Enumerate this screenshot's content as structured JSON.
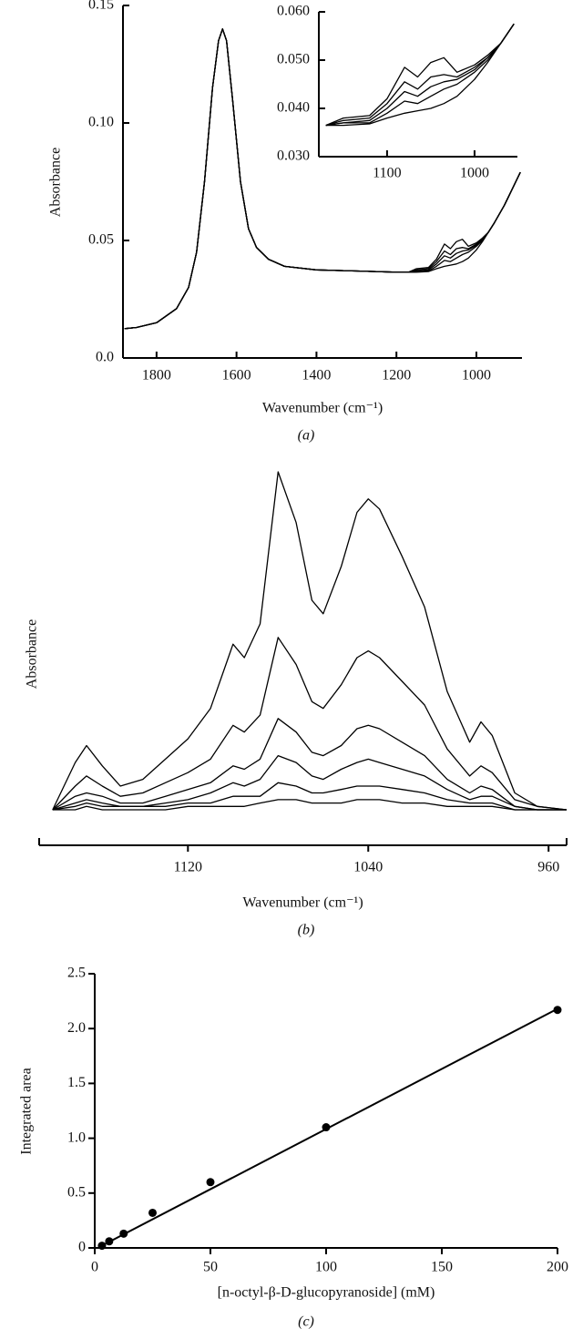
{
  "chart_data": [
    {
      "type": "line",
      "color": "#000000",
      "y_label": "Absorbance",
      "x_label": "Wavenumber (cm⁻¹)",
      "caption": "(a)",
      "xlim": [
        1884,
        886
      ],
      "xticks": [
        1800,
        1600,
        1400,
        1200,
        1000
      ],
      "ylim": [
        0,
        0.15
      ],
      "yticks": [
        {
          "value": 0,
          "label": "0.0"
        },
        0.05,
        {
          "value": 0.1,
          "label": "0.10"
        },
        0.15
      ],
      "x": [
        1880,
        1850,
        1800,
        1750,
        1720,
        1700,
        1680,
        1660,
        1645,
        1635,
        1625,
        1610,
        1590,
        1570,
        1550,
        1520,
        1480,
        1400,
        1300,
        1200,
        1170,
        1150,
        1120,
        1100,
        1080,
        1065,
        1050,
        1035,
        1020,
        1000,
        985,
        970,
        955,
        930,
        890
      ],
      "series": [
        {
          "values": [
            0.0125,
            0.013,
            0.015,
            0.021,
            0.03,
            0.045,
            0.075,
            0.115,
            0.135,
            0.14,
            0.135,
            0.11,
            0.075,
            0.055,
            0.047,
            0.042,
            0.039,
            0.0375,
            0.037,
            0.0365,
            0.0365,
            0.038,
            0.0385,
            0.042,
            0.0485,
            0.0465,
            0.0495,
            0.0505,
            0.0475,
            0.049,
            0.051,
            0.0535,
            0.0575,
            0.065,
            0.079
          ]
        },
        {
          "values": [
            0.0125,
            0.013,
            0.015,
            0.021,
            0.03,
            0.045,
            0.075,
            0.115,
            0.135,
            0.14,
            0.135,
            0.11,
            0.075,
            0.055,
            0.047,
            0.042,
            0.039,
            0.0375,
            0.037,
            0.0365,
            0.0365,
            0.0375,
            0.038,
            0.041,
            0.0455,
            0.044,
            0.0465,
            0.047,
            0.0465,
            0.0485,
            0.0505,
            0.0535,
            0.0575,
            0.065,
            0.079
          ]
        },
        {
          "values": [
            0.0125,
            0.013,
            0.015,
            0.021,
            0.03,
            0.045,
            0.075,
            0.115,
            0.135,
            0.14,
            0.135,
            0.11,
            0.075,
            0.055,
            0.047,
            0.042,
            0.039,
            0.0375,
            0.037,
            0.0365,
            0.0365,
            0.037,
            0.0375,
            0.04,
            0.0435,
            0.0425,
            0.0445,
            0.0455,
            0.046,
            0.048,
            0.0505,
            0.0535,
            0.0575,
            0.065,
            0.079
          ]
        },
        {
          "values": [
            0.0125,
            0.013,
            0.015,
            0.021,
            0.03,
            0.045,
            0.075,
            0.115,
            0.135,
            0.14,
            0.135,
            0.11,
            0.075,
            0.055,
            0.047,
            0.042,
            0.039,
            0.0375,
            0.037,
            0.0365,
            0.0365,
            0.037,
            0.037,
            0.039,
            0.0415,
            0.041,
            0.0425,
            0.044,
            0.045,
            0.0475,
            0.05,
            0.0535,
            0.0575,
            0.065,
            0.079
          ]
        },
        {
          "values": [
            0.0125,
            0.013,
            0.015,
            0.021,
            0.03,
            0.045,
            0.075,
            0.115,
            0.135,
            0.14,
            0.135,
            0.11,
            0.075,
            0.055,
            0.047,
            0.042,
            0.039,
            0.0375,
            0.037,
            0.0365,
            0.0365,
            0.0365,
            0.0368,
            0.038,
            0.039,
            0.0395,
            0.04,
            0.041,
            0.0425,
            0.046,
            0.0495,
            0.0535,
            0.0575,
            0.065,
            0.079
          ]
        }
      ]
    },
    {
      "type": "line",
      "color": "#000000",
      "xlim": [
        1178,
        951
      ],
      "xticks": [
        1100,
        1000
      ],
      "ylim": [
        0.03,
        0.06
      ],
      "yticks": [
        {
          "value": 0.03,
          "label": "0.030"
        },
        {
          "value": 0.04,
          "label": "0.040"
        },
        {
          "value": 0.05,
          "label": "0.050"
        },
        {
          "value": 0.06,
          "label": "0.060"
        }
      ],
      "x": [
        1170,
        1150,
        1120,
        1100,
        1080,
        1065,
        1050,
        1035,
        1020,
        1000,
        985,
        970,
        955
      ],
      "series": [
        {
          "values": [
            0.0365,
            0.038,
            0.0385,
            0.042,
            0.0485,
            0.0465,
            0.0495,
            0.0505,
            0.0475,
            0.049,
            0.051,
            0.0535,
            0.0575
          ]
        },
        {
          "values": [
            0.0365,
            0.0375,
            0.038,
            0.041,
            0.0455,
            0.044,
            0.0465,
            0.047,
            0.0465,
            0.0485,
            0.0505,
            0.0535,
            0.0575
          ]
        },
        {
          "values": [
            0.0365,
            0.037,
            0.0375,
            0.04,
            0.0435,
            0.0425,
            0.0445,
            0.0455,
            0.046,
            0.048,
            0.0505,
            0.0535,
            0.0575
          ]
        },
        {
          "values": [
            0.0365,
            0.037,
            0.037,
            0.039,
            0.0415,
            0.041,
            0.0425,
            0.044,
            0.045,
            0.0475,
            0.05,
            0.0535,
            0.0575
          ]
        },
        {
          "values": [
            0.0365,
            0.0365,
            0.0368,
            0.038,
            0.039,
            0.0395,
            0.04,
            0.041,
            0.0425,
            0.046,
            0.0495,
            0.0535,
            0.0575
          ]
        }
      ]
    },
    {
      "type": "line",
      "color": "#000000",
      "y_label": "Absorbance",
      "x_label": "Wavenumber (cm⁻¹)",
      "caption": "(b)",
      "xlim": [
        1186,
        952
      ],
      "xticks": [
        1120,
        1040,
        960
      ],
      "ylim": [
        0,
        100
      ],
      "x": [
        1180,
        1170,
        1165,
        1158,
        1150,
        1140,
        1130,
        1120,
        1110,
        1100,
        1095,
        1088,
        1080,
        1072,
        1065,
        1060,
        1052,
        1045,
        1040,
        1035,
        1025,
        1015,
        1005,
        995,
        990,
        985,
        975,
        965,
        952
      ],
      "series": [
        {
          "values": [
            0,
            14,
            19,
            13,
            7,
            9,
            15,
            21,
            30,
            49,
            45,
            55,
            100,
            85,
            62,
            58,
            72,
            88,
            92,
            89,
            75,
            60,
            35,
            20,
            26,
            22,
            5,
            1,
            0
          ]
        },
        {
          "values": [
            0,
            7,
            10,
            7,
            4,
            5,
            8,
            11,
            15,
            25,
            23,
            28,
            51,
            43,
            32,
            30,
            37,
            45,
            47,
            45,
            38,
            31,
            18,
            10,
            13,
            11,
            3,
            1,
            0
          ]
        },
        {
          "values": [
            0,
            4,
            5,
            4,
            2,
            2,
            4,
            6,
            8,
            13,
            12,
            15,
            27,
            23,
            17,
            16,
            19,
            24,
            25,
            24,
            20,
            16,
            9,
            5,
            7,
            6,
            1,
            0,
            0
          ]
        },
        {
          "values": [
            0,
            2,
            3,
            2,
            1,
            1,
            2,
            3,
            5,
            8,
            7,
            9,
            16,
            14,
            10,
            9,
            12,
            14,
            15,
            14,
            12,
            10,
            6,
            3,
            4,
            4,
            1,
            0,
            0
          ]
        },
        {
          "values": [
            0,
            1,
            2,
            1,
            1,
            1,
            1,
            2,
            2,
            4,
            4,
            4,
            8,
            7,
            5,
            5,
            6,
            7,
            7,
            7,
            6,
            5,
            3,
            2,
            2,
            2,
            0,
            0,
            0
          ]
        },
        {
          "values": [
            0,
            0,
            1,
            0,
            0,
            0,
            0,
            1,
            1,
            1,
            1,
            2,
            3,
            3,
            2,
            2,
            2,
            3,
            3,
            3,
            2,
            2,
            1,
            1,
            1,
            1,
            0,
            0,
            0
          ]
        }
      ]
    },
    {
      "type": "scatter",
      "color": "#000000",
      "y_label": "Integrated area",
      "x_label": "[n-octyl-β-D-glucopyranoside] (mM)",
      "caption": "(c)",
      "xlim": [
        0,
        200
      ],
      "xticks": [
        0,
        50,
        100,
        150,
        200
      ],
      "ylim": [
        0,
        2.5
      ],
      "yticks": [
        0,
        0.5,
        {
          "value": 1,
          "label": "1.0"
        },
        1.5,
        {
          "value": 2,
          "label": "2.0"
        },
        2.5
      ],
      "x": [
        3.125,
        6.25,
        12.5,
        25,
        50,
        100,
        200
      ],
      "values": [
        0.02,
        0.06,
        0.13,
        0.32,
        0.6,
        1.1,
        2.17
      ],
      "fit_line": {
        "x": [
          3,
          200
        ],
        "values": [
          0.02,
          2.18
        ]
      }
    }
  ]
}
